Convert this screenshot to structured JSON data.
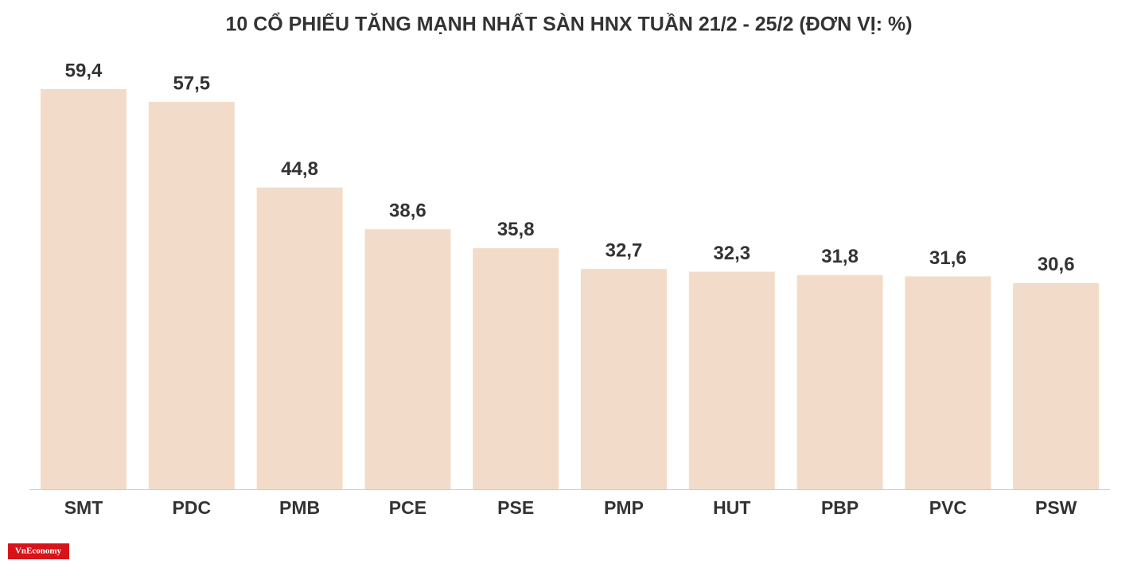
{
  "chart_data": {
    "type": "bar",
    "title": "10 CỔ PHIẾU TĂNG MẠNH NHẤT SÀN HNX TUẦN 21/2 - 25/2 (ĐƠN VỊ: %)",
    "categories": [
      "SMT",
      "PDC",
      "PMB",
      "PCE",
      "PSE",
      "PMP",
      "HUT",
      "PBP",
      "PVC",
      "PSW"
    ],
    "values": [
      59.4,
      57.5,
      44.8,
      38.6,
      35.8,
      32.7,
      32.3,
      31.8,
      31.6,
      30.6
    ],
    "value_labels": [
      "59,4",
      "57,5",
      "44,8",
      "38,6",
      "35,8",
      "32,7",
      "32,3",
      "31,8",
      "31,6",
      "30,6"
    ],
    "color": "#f2dcc9"
  },
  "logo": "VnEconomy"
}
